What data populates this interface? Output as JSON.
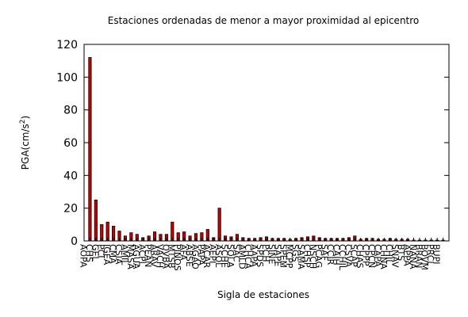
{
  "chart_data": {
    "type": "bar",
    "title": "Estaciones ordenadas de menor a mayor proximidad al epicentro",
    "xlabel": "Sigla de estaciones",
    "ylabel": "PGA(cm/s",
    "ylabel_sup": "2",
    "ylabel_close": ")",
    "ylim": [
      0,
      120
    ],
    "yticks": [
      0,
      20,
      40,
      60,
      80,
      100,
      120
    ],
    "grid": false,
    "legend": "none",
    "bar_color": "#cc0000",
    "categories": [
      "AOPA",
      "CHS",
      "GEL",
      "PCI",
      "IGEA",
      "CMA",
      "CSIA",
      "AMIL",
      "MASA",
      "AGUA",
      "ACPL",
      "PEAN",
      "ARAV",
      "VACH",
      "OVBA",
      "MTSB",
      "PINOS",
      "AFA",
      "ABSE",
      "AGAO",
      "PAPA",
      "ACAR",
      "AEPI",
      "ASOL",
      "SCHE",
      "SOLA",
      "SAC",
      "AMLD",
      "CHCA",
      "AAPA",
      "SPDS",
      "PCH",
      "SINE",
      "SAPE",
      "SPEM",
      "MCPP",
      "SGS",
      "SAMA",
      "CHSP",
      "NSCH",
      "PCAG",
      "SAF",
      "CCIR",
      "CAIH",
      "CCHIL",
      "CSVA",
      "SCAP",
      "CHAS",
      "CPPP",
      "CPCN",
      "CAPA",
      "CHNA",
      "CHIL",
      "SNAV",
      "BTS",
      "APPA",
      "NANA",
      "BRAN",
      "BOVM",
      "PRCL",
      "BUPI"
    ],
    "values": [
      112,
      25,
      10,
      11.5,
      9,
      6,
      3,
      5,
      4,
      2,
      3,
      5.5,
      4,
      4,
      11.5,
      5,
      5.5,
      3,
      4.5,
      5,
      7,
      2,
      20,
      3,
      2.5,
      4,
      2,
      1.5,
      1.5,
      2,
      2.5,
      1.5,
      1.5,
      1.5,
      1,
      1.5,
      2,
      2.5,
      3,
      2,
      1.5,
      1.5,
      1.5,
      1.5,
      2,
      3,
      1,
      1.5,
      1.5,
      1,
      1,
      1.5,
      1,
      1,
      1,
      0.5,
      0.5,
      0.5,
      0.5,
      0.5,
      0.5
    ]
  }
}
